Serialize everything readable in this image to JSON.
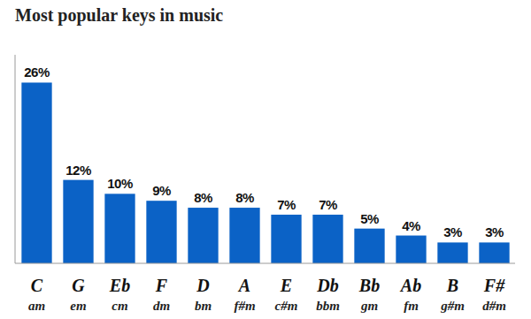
{
  "chart_data": {
    "type": "bar",
    "title": "Most popular keys in music",
    "categories": [
      "C",
      "G",
      "Eb",
      "F",
      "D",
      "A",
      "E",
      "Db",
      "Bb",
      "Ab",
      "B",
      "F#"
    ],
    "sublabels": [
      "am",
      "em",
      "cm",
      "dm",
      "bm",
      "f#m",
      "c#m",
      "bbm",
      "gm",
      "fm",
      "g#m",
      "d#m"
    ],
    "values": [
      26,
      12,
      10,
      9,
      8,
      8,
      7,
      7,
      5,
      4,
      3,
      3
    ],
    "value_labels": [
      "26%",
      "12%",
      "10%",
      "9%",
      "8%",
      "8%",
      "7%",
      "7%",
      "5%",
      "4%",
      "3%",
      "3%"
    ],
    "color": "#0b62c6",
    "ylim": [
      0,
      30
    ],
    "data_labels": true,
    "tick_labels": "x",
    "grid": false
  }
}
